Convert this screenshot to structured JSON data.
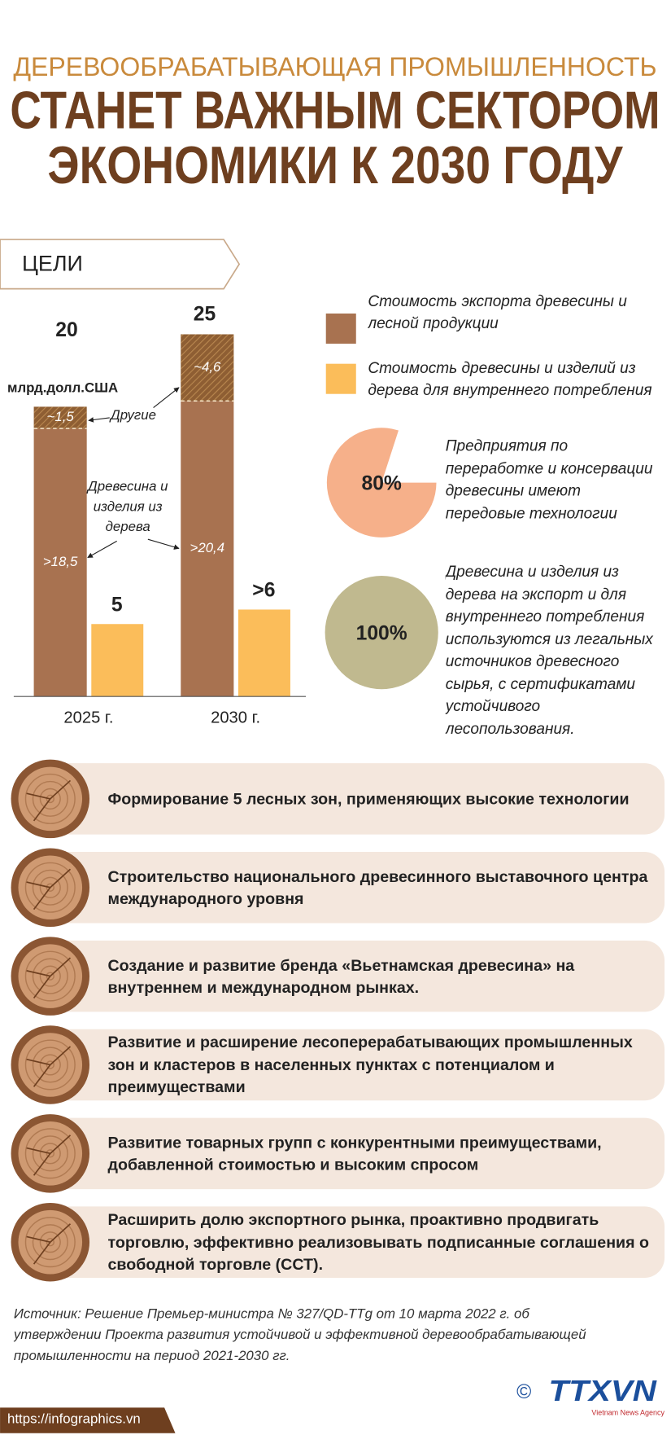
{
  "header": {
    "subtitle": "ДЕРЕВООБРАБАТЫВАЮЩАЯ ПРОМЫШЛЕННОСТЬ",
    "title_lines": [
      "СТАНЕТ ВАЖНЫМ СЕКТОРОМ",
      "ЭКОНОМИКИ К 2030 ГОДУ"
    ]
  },
  "section_label": "ЦЕЛИ",
  "chart_data": {
    "type": "bar",
    "unit": "млрд.долл.США",
    "categories": [
      "2025 г.",
      "2030 г."
    ],
    "total_labels": [
      "20",
      "25"
    ],
    "export_legend": {
      "name": "Стоимость экспорта древесины и лесной продукции",
      "color": "#a87250"
    },
    "series": [
      {
        "name": "Древесина и изделия из дерева",
        "stack": "export",
        "color": "#a87250",
        "values": [
          18.5,
          20.4
        ],
        "value_labels": [
          ">18,5",
          ">20,4"
        ]
      },
      {
        "name": "Другие",
        "stack": "export",
        "color": "#8e5e33",
        "values": [
          1.5,
          4.6
        ],
        "value_labels": [
          "~1,5",
          "~4,6"
        ]
      },
      {
        "name": "Стоимость древесины и изделий из дерева для внутреннего потребления",
        "stack": "domestic",
        "color": "#fbbd5a",
        "values": [
          5,
          6
        ],
        "value_labels": [
          "5",
          ">6"
        ]
      }
    ]
  },
  "stats": [
    {
      "type": "pie",
      "value": 80,
      "label": "80%",
      "color": "#f6b08a",
      "text": "Предприятия по переработке и консервации древесины имеют передовые технологии"
    },
    {
      "type": "pie",
      "value": 100,
      "label": "100%",
      "color": "#c0b98f",
      "text": "Древесина и изделия из дерева на экспорт и для внутреннего потребления используются из легальных источников древесного сырья, с сертификатами устойчивого лесопользования."
    }
  ],
  "goals": [
    "Формирование 5 лесных зон, применяющих высокие технологии",
    "Строительство национального древесинного выставочного центра международного уровня",
    "Создание и развитие бренда «Вьетнамская древесина» на внутреннем и международном рынках.",
    "Развитие и расширение лесоперерабатывающих промышленных зон и кластеров в населенных пунктах с потенциалом и преимуществами",
    "Развитие товарных групп с конкурентными преимуществами, добавленной стоимостью и высоким спросом",
    "Расширить долю экспортного рынка, проактивно продвигать торговлю, эффективно реализовывать подписанные соглашения о свободной торговле (ССТ)."
  ],
  "source": "Источник: Решение Премьер-министра № 327/QD-TTg от 10 марта 2022 г. об утверждении Проекта развития устойчивой и эффективной деревообрабатывающей промышленности на период 2021-2030 гг.",
  "footer": {
    "url": "https://infographics.vn",
    "copyright": "©",
    "logo": "TTXVN",
    "agency": "Vietnam News Agency"
  }
}
